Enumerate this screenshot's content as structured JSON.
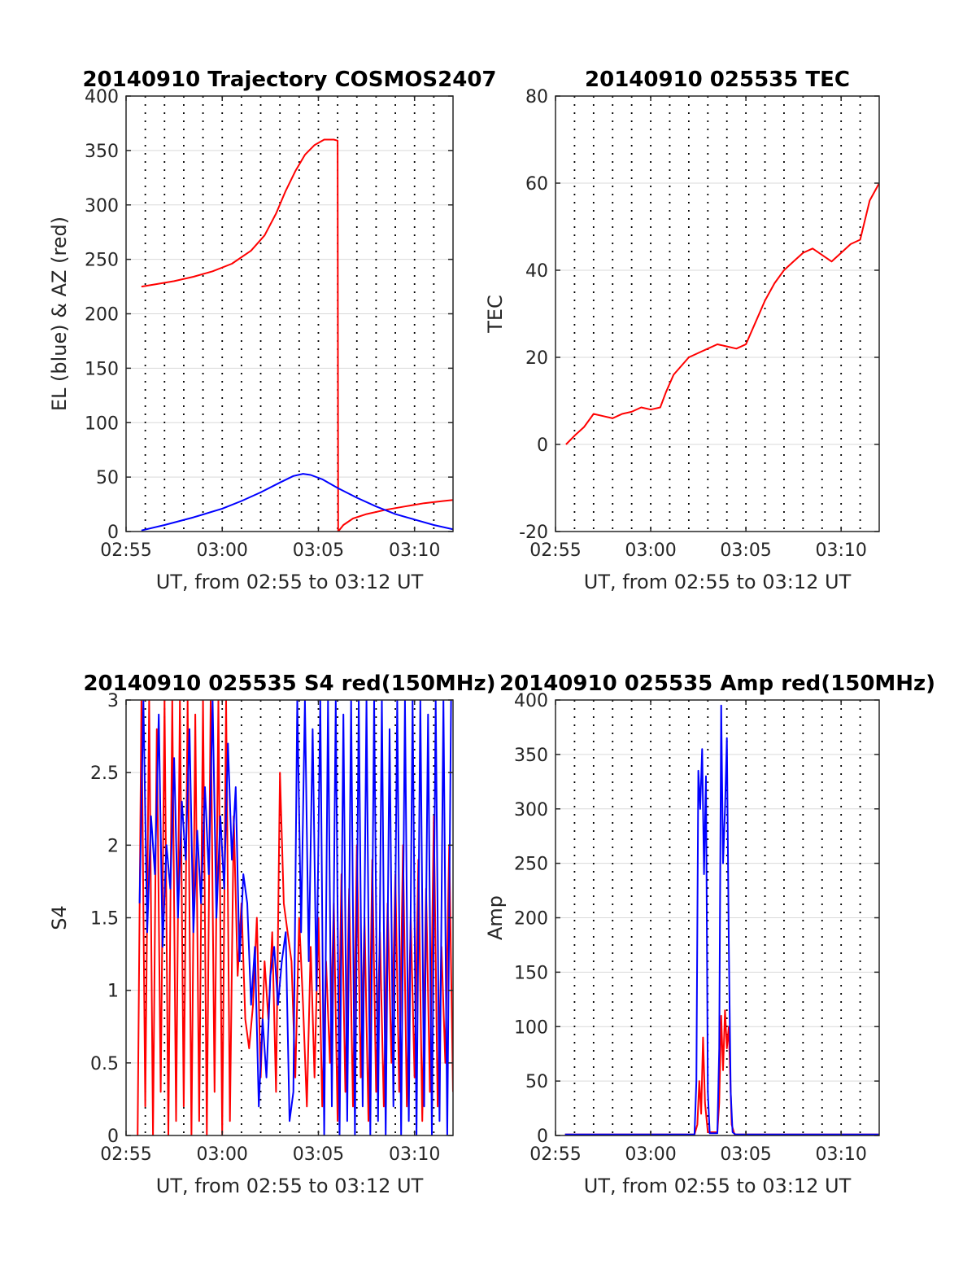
{
  "colors": {
    "red": "#ff0000",
    "blue": "#0000ff",
    "axis": "#262626",
    "grid": "#d9d9d9",
    "vline": "#000000"
  },
  "chart_data": [
    {
      "id": "trajectory",
      "type": "line",
      "title": "20140910 Trajectory COSMOS2407",
      "xlabel": "UT, from 02:55 to 03:12 UT",
      "ylabel": "EL (blue) & AZ (red)",
      "xlim": [
        0,
        17
      ],
      "ylim": [
        0,
        400
      ],
      "xticks": [
        "02:55",
        "03:00",
        "03:05",
        "03:10"
      ],
      "yticks": [
        "0",
        "50",
        "100",
        "150",
        "200",
        "250",
        "300",
        "350",
        "400"
      ],
      "grid": true,
      "series": [
        {
          "color": "red",
          "x": [
            0.8,
            1.5,
            2.5,
            3.5,
            4.5,
            5.5,
            6.5,
            7.2,
            7.8,
            8.3,
            8.8,
            9.3,
            9.8,
            10.3,
            10.8,
            11.0,
            11.03,
            11.3,
            11.8,
            12.5,
            13.5,
            14.5,
            15.5,
            16.5,
            17.0
          ],
          "y": [
            225,
            227,
            230,
            234,
            239,
            246,
            258,
            272,
            292,
            313,
            331,
            346,
            355,
            360,
            360,
            359,
            0,
            6,
            12,
            16,
            20,
            23,
            26,
            28,
            29
          ]
        },
        {
          "color": "blue",
          "x": [
            0.8,
            2.0,
            3.5,
            5.0,
            6.0,
            7.0,
            8.0,
            8.7,
            9.2,
            9.6,
            10.2,
            11.0,
            12.0,
            13.0,
            14.0,
            15.0,
            16.0,
            17.0
          ],
          "y": [
            1,
            6,
            13,
            21,
            28,
            36,
            45,
            51,
            53,
            52,
            48,
            40,
            31,
            23,
            16,
            11,
            6,
            2
          ]
        }
      ]
    },
    {
      "id": "tec",
      "type": "line",
      "title": "20140910 025535 TEC",
      "xlabel": "UT, from 02:55 to 03:12 UT",
      "ylabel": "TEC",
      "xlim": [
        0,
        17
      ],
      "ylim": [
        -20,
        80
      ],
      "xticks": [
        "02:55",
        "03:00",
        "03:05",
        "03:10"
      ],
      "yticks": [
        "-20",
        "0",
        "20",
        "40",
        "60",
        "80"
      ],
      "grid": true,
      "series": [
        {
          "color": "red",
          "x": [
            0.55,
            1.0,
            1.5,
            2.0,
            2.5,
            3.0,
            3.5,
            4.0,
            4.5,
            5.0,
            5.5,
            5.8,
            6.2,
            7.0,
            7.5,
            8.0,
            8.5,
            9.0,
            9.5,
            10.0,
            10.5,
            11.0,
            11.5,
            12.0,
            12.5,
            13.0,
            13.5,
            14.0,
            14.5,
            15.0,
            15.5,
            16.0,
            16.5,
            17.0
          ],
          "y": [
            0,
            2,
            4,
            7,
            6.5,
            6,
            7,
            7.5,
            8.5,
            8,
            8.5,
            12,
            16,
            20,
            21,
            22,
            23,
            22.5,
            22,
            23,
            28,
            33,
            37,
            40,
            42,
            44,
            45,
            43.5,
            42,
            44,
            46,
            47,
            56,
            60
          ]
        }
      ]
    },
    {
      "id": "s4",
      "type": "line",
      "title": "20140910 025535 S4 red(150MHz)",
      "xlabel": "UT, from 02:55 to 03:12 UT",
      "ylabel": "S4",
      "xlim": [
        0,
        17
      ],
      "ylim": [
        0,
        3
      ],
      "xticks": [
        "02:55",
        "03:00",
        "03:05",
        "03:10"
      ],
      "yticks": [
        "0",
        "0.5",
        "1",
        "1.5",
        "2",
        "2.5",
        "3"
      ],
      "grid": true,
      "series": [
        {
          "color": "red",
          "x": [
            0.6,
            0.8,
            1.0,
            1.2,
            1.4,
            1.6,
            1.8,
            2.0,
            2.2,
            2.4,
            2.6,
            2.8,
            3.0,
            3.2,
            3.4,
            3.6,
            3.8,
            4.0,
            4.2,
            4.4,
            4.6,
            4.8,
            5.0,
            5.2,
            5.4,
            5.6,
            5.8,
            6.0,
            6.2,
            6.4,
            6.6,
            6.8,
            7.0,
            7.2,
            7.4,
            7.6,
            7.8,
            8.0,
            8.2,
            8.4,
            8.6,
            8.8,
            9.0,
            9.2,
            9.4,
            9.6,
            9.8,
            10.0,
            10.2,
            10.4,
            10.6,
            10.8,
            11.0,
            11.2,
            11.4,
            11.6,
            11.8,
            12.0,
            12.2,
            12.4,
            12.6,
            12.8,
            13.0,
            13.2,
            13.4,
            13.6,
            13.8,
            14.0,
            14.2,
            14.4,
            14.6,
            14.8,
            15.0,
            15.2,
            15.4,
            15.6,
            15.8,
            16.0,
            16.2,
            16.4,
            16.6,
            16.8,
            17.0
          ],
          "y": [
            0,
            3,
            0.2,
            3,
            0,
            2.8,
            0.3,
            3,
            0,
            3,
            0.1,
            3,
            0.2,
            3,
            0,
            2.9,
            0.1,
            3,
            0,
            3,
            0.3,
            3,
            0,
            3,
            0.1,
            2.2,
            1.1,
            1.6,
            0.8,
            0.6,
            0.9,
            1.5,
            0.4,
            1.2,
            0.8,
            1.4,
            0.3,
            2.5,
            1.6,
            1.4,
            1.2,
            0.4,
            1.5,
            0.9,
            0.2,
            1.3,
            0.4,
            1.5,
            0.2,
            1.2,
            0.5,
            1.6,
            0.1,
            1.8,
            0.3,
            1.7,
            0.2,
            2.0,
            0.4,
            1.5,
            0.1,
            1.9,
            0.3,
            1.4,
            0.2,
            1.6,
            0.5,
            1.8,
            0.3,
            2.0,
            0.2,
            1.5,
            0.4,
            1.9,
            0.1,
            1.7,
            0.3,
            2.2,
            0.2,
            1.3,
            0.5,
            2.0,
            0.3
          ]
        },
        {
          "color": "blue",
          "x": [
            0.7,
            0.9,
            1.1,
            1.3,
            1.5,
            1.7,
            1.9,
            2.1,
            2.3,
            2.5,
            2.7,
            2.9,
            3.1,
            3.3,
            3.5,
            3.7,
            3.9,
            4.1,
            4.3,
            4.5,
            4.7,
            4.9,
            5.1,
            5.3,
            5.5,
            5.7,
            5.9,
            6.1,
            6.3,
            6.5,
            6.7,
            6.9,
            7.1,
            7.3,
            7.5,
            7.7,
            7.9,
            8.1,
            8.3,
            8.5,
            8.7,
            8.9,
            9.1,
            9.3,
            9.5,
            9.7,
            9.9,
            10.1,
            10.3,
            10.5,
            10.7,
            10.9,
            11.1,
            11.3,
            11.5,
            11.7,
            11.9,
            12.1,
            12.3,
            12.5,
            12.7,
            12.9,
            13.1,
            13.3,
            13.5,
            13.7,
            13.9,
            14.1,
            14.3,
            14.5,
            14.7,
            14.9,
            15.1,
            15.3,
            15.5,
            15.7,
            15.9,
            16.1,
            16.3,
            16.5,
            16.7,
            16.9
          ],
          "y": [
            1.6,
            3,
            1.4,
            2.2,
            1.8,
            2.9,
            1.3,
            2.0,
            1.7,
            2.6,
            1.5,
            2.3,
            1.9,
            2.8,
            1.4,
            2.1,
            1.6,
            2.4,
            1.8,
            3,
            1.5,
            2.2,
            1.7,
            2.7,
            1.9,
            2.4,
            1.2,
            1.8,
            1.6,
            0.9,
            1.3,
            0.2,
            0.8,
            0.4,
            1.1,
            1.3,
            0.9,
            1.2,
            1.4,
            0.1,
            0.3,
            3,
            1.4,
            3,
            1.2,
            2.8,
            1.0,
            3,
            0.0,
            3,
            0.2,
            3,
            0.0,
            2.9,
            0.1,
            3,
            0.0,
            3,
            0.2,
            3,
            0.0,
            3,
            0.1,
            3,
            0.0,
            2.8,
            0.2,
            3,
            0.0,
            3,
            0.1,
            3,
            0.0,
            3,
            0.2,
            2.9,
            0.0,
            3,
            0.1,
            3,
            0.0,
            3
          ]
        }
      ]
    },
    {
      "id": "amp",
      "type": "line",
      "title": "20140910 025535 Amp red(150MHz)",
      "xlabel": "UT, from 02:55 to 03:12 UT",
      "ylabel": "Amp",
      "xlim": [
        0,
        17
      ],
      "ylim": [
        0,
        400
      ],
      "xticks": [
        "02:55",
        "03:00",
        "03:05",
        "03:10"
      ],
      "yticks": [
        "0",
        "50",
        "100",
        "150",
        "200",
        "250",
        "300",
        "350",
        "400"
      ],
      "grid": true,
      "series": [
        {
          "color": "red",
          "x": [
            0.5,
            7.3,
            7.45,
            7.55,
            7.65,
            7.75,
            7.85,
            8.0,
            8.5,
            8.6,
            8.7,
            8.8,
            8.9,
            9.0,
            9.1,
            9.25,
            9.4,
            17.0
          ],
          "y": [
            1,
            1,
            10,
            50,
            20,
            90,
            30,
            3,
            3,
            30,
            110,
            60,
            115,
            80,
            100,
            10,
            1,
            1
          ]
        },
        {
          "color": "blue",
          "x": [
            0.5,
            7.3,
            7.4,
            7.5,
            7.6,
            7.7,
            7.8,
            7.9,
            8.0,
            8.1,
            8.5,
            8.6,
            8.7,
            8.8,
            8.9,
            9.0,
            9.1,
            9.2,
            9.3,
            9.45,
            17.0
          ],
          "y": [
            1,
            1,
            50,
            335,
            300,
            355,
            240,
            330,
            40,
            2,
            2,
            80,
            395,
            250,
            300,
            365,
            180,
            40,
            3,
            1,
            1
          ]
        }
      ]
    }
  ]
}
